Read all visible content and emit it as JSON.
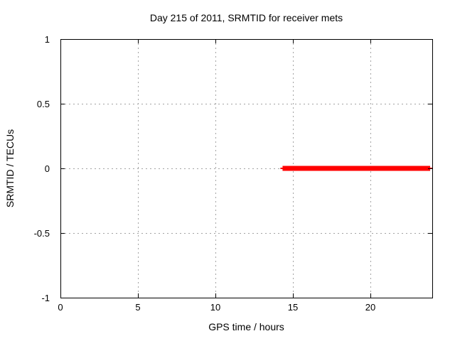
{
  "chart_data": {
    "type": "line",
    "title": "Day 215 of 2011, SRMTID for receiver mets",
    "xlabel": "GPS time / hours",
    "ylabel": "SRMTID / TECUs",
    "xlim": [
      0,
      24
    ],
    "ylim": [
      -1,
      1
    ],
    "grid": true,
    "legend": "none",
    "x_ticks": [
      {
        "v": 0,
        "label": "0"
      },
      {
        "v": 5,
        "label": "5"
      },
      {
        "v": 10,
        "label": "10"
      },
      {
        "v": 15,
        "label": "15"
      },
      {
        "v": 20,
        "label": "20"
      }
    ],
    "y_ticks": [
      {
        "v": -1,
        "label": "-1"
      },
      {
        "v": -0.5,
        "label": "-0.5"
      },
      {
        "v": 0,
        "label": "0"
      },
      {
        "v": 0.5,
        "label": "0.5"
      },
      {
        "v": 1,
        "label": "1"
      }
    ],
    "series": [
      {
        "name": "SRMTID",
        "color": "#ff0000",
        "line_width": 7,
        "points": [
          [
            14.2,
            0
          ],
          [
            24,
            0
          ]
        ]
      }
    ],
    "colors": {
      "grid": "#a3a3a3",
      "axis": "#000000",
      "text": "#000000",
      "background": "#ffffff"
    }
  }
}
